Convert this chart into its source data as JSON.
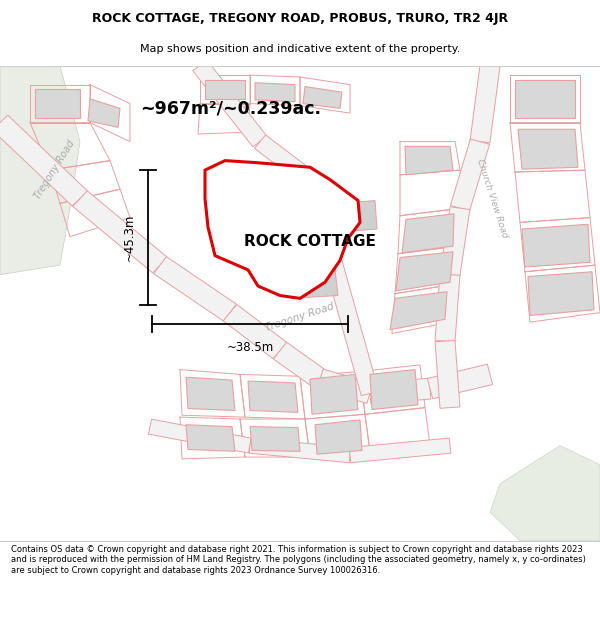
{
  "title_line1": "ROCK COTTAGE, TREGONY ROAD, PROBUS, TRURO, TR2 4JR",
  "title_line2": "Map shows position and indicative extent of the property.",
  "area_text": "~967m²/~0.239ac.",
  "property_label": "ROCK COTTAGE",
  "dim_width": "~38.5m",
  "dim_height": "~45.3m",
  "road_label_tregony": "Tregony Road",
  "road_label_church": "Church View Road",
  "footer": "Contains OS data © Crown copyright and database right 2021. This information is subject to Crown copyright and database rights 2023 and is reproduced with the permission of HM Land Registry. The polygons (including the associated geometry, namely x, y co-ordinates) are subject to Crown copyright and database rights 2023 Ordnance Survey 100026316.",
  "map_bg": "#f5f5f5",
  "plot_outline_color": "#dd0000",
  "plot_fill_color": "#ffffff",
  "line_color": "#e8a0a0",
  "building_fill": "#d8d8d8",
  "building_edge": "#e8a0a0",
  "green_area": "#e8ede8",
  "dim_line_color": "#000000",
  "title_bg": "#ffffff",
  "footer_bg": "#ffffff"
}
